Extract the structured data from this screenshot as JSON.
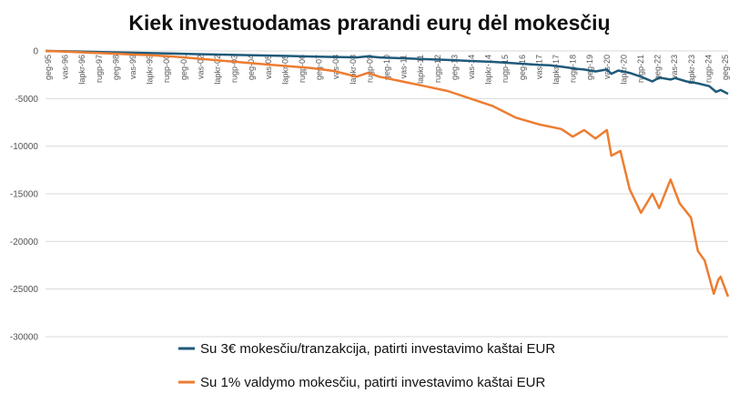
{
  "chart_data": {
    "type": "line",
    "title": "Kiek investuodamas prarandi eurų dėl mokesčių",
    "xlabel": "",
    "ylabel": "",
    "ylim": [
      -30000,
      0
    ],
    "yticks": [
      0,
      -5000,
      -10000,
      -15000,
      -20000,
      -25000,
      -30000
    ],
    "grid": true,
    "legend": "bottom",
    "x_tick_labels": [
      "geg-95",
      "vas-96",
      "lapkr-96",
      "rugp-97",
      "geg-98",
      "vas-99",
      "lapkr-99",
      "rugp-00",
      "geg-01",
      "vas-02",
      "lapkr-02",
      "rugp-03",
      "geg-04",
      "vas-05",
      "lapkr-05",
      "rugp-06",
      "geg-07",
      "vas-08",
      "lapkr-08",
      "rugp-09",
      "geg-10",
      "vas-11",
      "lapkr-11",
      "rugp-12",
      "geg-13",
      "vas-14",
      "lapkr-14",
      "rugp-15",
      "geg-16",
      "vas-17",
      "lapkr-17",
      "rugp-18",
      "geg-19",
      "vas-20",
      "lapkr-20",
      "rugp-21",
      "geg-22",
      "vas-23",
      "lapkr-23",
      "rugp-24",
      "geg-25"
    ],
    "series": [
      {
        "name": "Su 3€ mokesčiu/tranzakcija, patirti investavimo kaštai EUR",
        "color": "#1f5a7a",
        "x": [
          1995.33,
          1996,
          1997,
          1998,
          1999,
          2000,
          2001,
          2002,
          2003,
          2004,
          2005,
          2006,
          2007,
          2008,
          2009,
          2009.5,
          2010,
          2011,
          2012,
          2013,
          2014,
          2015,
          2016,
          2017,
          2017.5,
          2018,
          2018.6,
          2019,
          2019.5,
          2020,
          2020.2,
          2020.5,
          2021,
          2021.5,
          2022,
          2022.3,
          2022.8,
          2023,
          2023.5,
          2024,
          2024.5,
          2024.8,
          2025,
          2025.33
        ],
        "values": [
          0,
          -30,
          -80,
          -130,
          -180,
          -230,
          -280,
          -330,
          -380,
          -430,
          -480,
          -530,
          -580,
          -630,
          -680,
          -560,
          -680,
          -760,
          -860,
          -950,
          -1050,
          -1150,
          -1300,
          -1450,
          -1500,
          -1650,
          -1850,
          -1950,
          -2150,
          -1950,
          -2400,
          -2050,
          -2300,
          -2700,
          -3200,
          -2800,
          -3000,
          -2850,
          -3200,
          -3400,
          -3700,
          -4300,
          -4100,
          -4500
        ]
      },
      {
        "name": "Su 1% valdymo mokesčiu, patirti investavimo kaštai EUR",
        "color": "#ed7d31",
        "x": [
          1995.33,
          1996,
          1997,
          1998,
          1999,
          2000,
          2001,
          2002,
          2003,
          2004,
          2005,
          2006,
          2007,
          2008,
          2009,
          2009.5,
          2010,
          2011,
          2012,
          2013,
          2014,
          2015,
          2016,
          2017,
          2018,
          2018.5,
          2019,
          2019.5,
          2020,
          2020.2,
          2020.6,
          2021,
          2021.5,
          2022,
          2022.3,
          2022.8,
          2023.2,
          2023.7,
          2024,
          2024.3,
          2024.7,
          2024.9,
          2025,
          2025.33
        ],
        "values": [
          0,
          -50,
          -150,
          -250,
          -350,
          -450,
          -600,
          -800,
          -1000,
          -1200,
          -1400,
          -1600,
          -1800,
          -2100,
          -2700,
          -2300,
          -2700,
          -3200,
          -3700,
          -4200,
          -5000,
          -5800,
          -7000,
          -7700,
          -8200,
          -9000,
          -8300,
          -9200,
          -8300,
          -11000,
          -10500,
          -14500,
          -17000,
          -15000,
          -16500,
          -13500,
          -16000,
          -17500,
          -21000,
          -22000,
          -25500,
          -24000,
          -23700,
          -25800
        ]
      }
    ]
  }
}
